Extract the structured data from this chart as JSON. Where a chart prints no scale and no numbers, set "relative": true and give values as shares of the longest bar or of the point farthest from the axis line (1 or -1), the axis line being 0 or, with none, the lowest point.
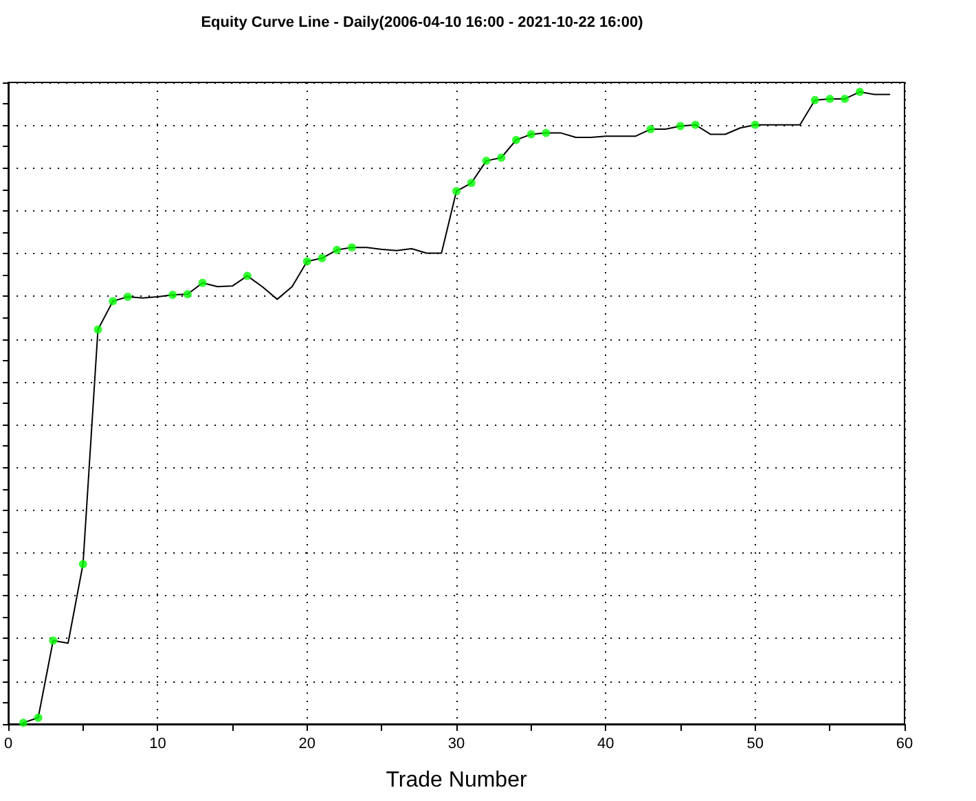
{
  "chart_data": {
    "type": "line",
    "title": "Equity Curve Line - Daily(2006-04-10 16:00 - 2021-10-22 16:00)",
    "xlabel": "Trade Number",
    "x": [
      1,
      2,
      3,
      4,
      5,
      6,
      7,
      8,
      9,
      10,
      11,
      12,
      13,
      14,
      15,
      16,
      17,
      18,
      19,
      20,
      21,
      22,
      23,
      24,
      25,
      26,
      27,
      28,
      29,
      30,
      31,
      32,
      33,
      34,
      35,
      36,
      37,
      38,
      39,
      40,
      41,
      42,
      43,
      44,
      45,
      46,
      47,
      48,
      49,
      50,
      51,
      52,
      53,
      54,
      55,
      56,
      57,
      58,
      59
    ],
    "series": [
      {
        "color": "#000000",
        "marker": "none",
        "values": [
          0.002,
          0.01,
          0.132,
          0.128,
          0.253,
          0.624,
          0.669,
          0.676,
          0.674,
          0.676,
          0.679,
          0.68,
          0.698,
          0.692,
          0.693,
          0.709,
          0.692,
          0.672,
          0.692,
          0.732,
          0.737,
          0.75,
          0.754,
          0.754,
          0.751,
          0.749,
          0.752,
          0.745,
          0.745,
          0.843,
          0.856,
          0.891,
          0.896,
          0.924,
          0.933,
          0.935,
          0.935,
          0.928,
          0.928,
          0.93,
          0.93,
          0.93,
          0.941,
          0.941,
          0.946,
          0.948,
          0.933,
          0.933,
          0.943,
          0.948,
          0.948,
          0.948,
          0.948,
          0.987,
          0.989,
          0.989,
          1,
          0.996,
          0.996
        ]
      },
      {
        "type": "scatter",
        "color": "#00ff00",
        "marker": "circle",
        "x": [
          1,
          2,
          3,
          5,
          6,
          7,
          8,
          11,
          12,
          13,
          16,
          20,
          21,
          22,
          23,
          30,
          31,
          32,
          33,
          34,
          35,
          36,
          43,
          45,
          46,
          50,
          54,
          55,
          56,
          57
        ],
        "values": [
          0.002,
          0.01,
          0.132,
          0.253,
          0.624,
          0.669,
          0.676,
          0.679,
          0.68,
          0.698,
          0.709,
          0.732,
          0.737,
          0.75,
          0.754,
          0.843,
          0.856,
          0.891,
          0.896,
          0.924,
          0.933,
          0.935,
          0.941,
          0.946,
          0.948,
          0.948,
          0.987,
          0.989,
          0.989,
          1
        ]
      }
    ],
    "relative": true,
    "xlim": [
      0,
      60
    ],
    "xticks": [
      0,
      {
        "value": 5,
        "label": null
      },
      10,
      {
        "value": 15,
        "label": null
      },
      20,
      {
        "value": 25,
        "label": null
      },
      30,
      {
        "value": 35,
        "label": null
      },
      40,
      {
        "value": 45,
        "label": null
      },
      50,
      {
        "value": 55,
        "label": null
      },
      60
    ],
    "grid": true
  }
}
